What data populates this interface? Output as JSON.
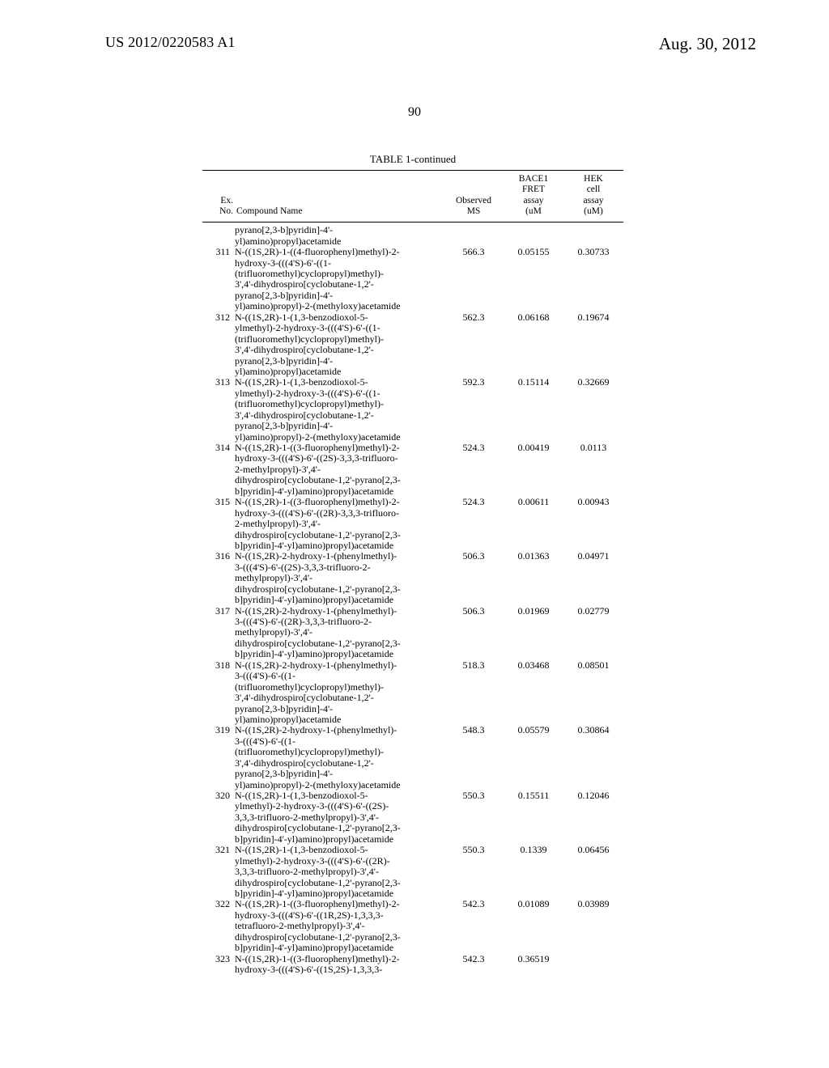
{
  "header": {
    "left": "US 2012/0220583 A1",
    "right": "Aug. 30, 2012",
    "page_number": "90"
  },
  "table": {
    "title": "TABLE 1-continued",
    "columns": {
      "exno": "Ex.\nNo.",
      "name": "Compound Name",
      "ms": "Observed\nMS",
      "fret": "BACE1\nFRET\nassay\n(uM",
      "hek": "HEK\ncell\nassay\n(uM)"
    },
    "prelude": [
      "pyrano[2,3-b]pyridin]-4'-",
      "yl)amino)propyl)acetamide"
    ],
    "rows": [
      {
        "ex": "311",
        "ms": "566.3",
        "fret": "0.05155",
        "hek": "0.30733",
        "name": [
          "N-((1S,2R)-1-((4-fluorophenyl)methyl)-2-",
          "hydroxy-3-(((4'S)-6'-((1-",
          "(trifluoromethyl)cyclopropyl)methyl)-",
          "3',4'-dihydrospiro[cyclobutane-1,2'-",
          "pyrano[2,3-b]pyridin]-4'-",
          "yl)amino)propyl)-2-(methyloxy)acetamide"
        ]
      },
      {
        "ex": "312",
        "ms": "562.3",
        "fret": "0.06168",
        "hek": "0.19674",
        "name": [
          "N-((1S,2R)-1-(1,3-benzodioxol-5-",
          "ylmethyl)-2-hydroxy-3-(((4'S)-6'-((1-",
          "(trifluoromethyl)cyclopropyl)methyl)-",
          "3',4'-dihydrospiro[cyclobutane-1,2'-",
          "pyrano[2,3-b]pyridin]-4'-",
          "yl)amino)propyl)acetamide"
        ]
      },
      {
        "ex": "313",
        "ms": "592.3",
        "fret": "0.15114",
        "hek": "0.32669",
        "name": [
          "N-((1S,2R)-1-(1,3-benzodioxol-5-",
          "ylmethyl)-2-hydroxy-3-(((4'S)-6'-((1-",
          "(trifluoromethyl)cyclopropyl)methyl)-",
          "3',4'-dihydrospiro[cyclobutane-1,2'-",
          "pyrano[2,3-b]pyridin]-4'-",
          "yl)amino)propyl)-2-(methyloxy)acetamide"
        ]
      },
      {
        "ex": "314",
        "ms": "524.3",
        "fret": "0.00419",
        "hek": "0.0113",
        "name": [
          "N-((1S,2R)-1-((3-fluorophenyl)methyl)-2-",
          "hydroxy-3-(((4'S)-6'-((2S)-3,3,3-trifluoro-",
          "2-methylpropyl)-3',4'-",
          "dihydrospiro[cyclobutane-1,2'-pyrano[2,3-",
          "b]pyridin]-4'-yl)amino)propyl)acetamide"
        ]
      },
      {
        "ex": "315",
        "ms": "524.3",
        "fret": "0.00611",
        "hek": "0.00943",
        "name": [
          "N-((1S,2R)-1-((3-fluorophenyl)methyl)-2-",
          "hydroxy-3-(((4'S)-6'-((2R)-3,3,3-trifluoro-",
          "2-methylpropyl)-3',4'-",
          "dihydrospiro[cyclobutane-1,2'-pyrano[2,3-",
          "b]pyridin]-4'-yl)amino)propyl)acetamide"
        ]
      },
      {
        "ex": "316",
        "ms": "506.3",
        "fret": "0.01363",
        "hek": "0.04971",
        "name": [
          "N-((1S,2R)-2-hydroxy-1-(phenylmethyl)-",
          "3-(((4'S)-6'-((2S)-3,3,3-trifluoro-2-",
          "methylpropyl)-3',4'-",
          "dihydrospiro[cyclobutane-1,2'-pyrano[2,3-",
          "b]pyridin]-4'-yl)amino)propyl)acetamide"
        ]
      },
      {
        "ex": "317",
        "ms": "506.3",
        "fret": "0.01969",
        "hek": "0.02779",
        "name": [
          "N-((1S,2R)-2-hydroxy-1-(phenylmethyl)-",
          "3-(((4'S)-6'-((2R)-3,3,3-trifluoro-2-",
          "methylpropyl)-3',4'-",
          "dihydrospiro[cyclobutane-1,2'-pyrano[2,3-",
          "b]pyridin]-4'-yl)amino)propyl)acetamide"
        ]
      },
      {
        "ex": "318",
        "ms": "518.3",
        "fret": "0.03468",
        "hek": "0.08501",
        "name": [
          "N-((1S,2R)-2-hydroxy-1-(phenylmethyl)-",
          "3-(((4'S)-6'-((1-",
          "(trifluoromethyl)cyclopropyl)methyl)-",
          "3',4'-dihydrospiro[cyclobutane-1,2'-",
          "pyrano[2,3-b]pyridin]-4'-",
          "yl)amino)propyl)acetamide"
        ]
      },
      {
        "ex": "319",
        "ms": "548.3",
        "fret": "0.05579",
        "hek": "0.30864",
        "name": [
          "N-((1S,2R)-2-hydroxy-1-(phenylmethyl)-",
          "3-(((4'S)-6'-((1-",
          "(trifluoromethyl)cyclopropyl)methyl)-",
          "3',4'-dihydrospiro[cyclobutane-1,2'-",
          "pyrano[2,3-b]pyridin]-4'-",
          "yl)amino)propyl)-2-(methyloxy)acetamide"
        ]
      },
      {
        "ex": "320",
        "ms": "550.3",
        "fret": "0.15511",
        "hek": "0.12046",
        "name": [
          "N-((1S,2R)-1-(1,3-benzodioxol-5-",
          "ylmethyl)-2-hydroxy-3-(((4'S)-6'-((2S)-",
          "3,3,3-trifluoro-2-methylpropyl)-3',4'-",
          "dihydrospiro[cyclobutane-1,2'-pyrano[2,3-",
          "b]pyridin]-4'-yl)amino)propyl)acetamide"
        ]
      },
      {
        "ex": "321",
        "ms": "550.3",
        "fret": "0.1339",
        "hek": "0.06456",
        "name": [
          "N-((1S,2R)-1-(1,3-benzodioxol-5-",
          "ylmethyl)-2-hydroxy-3-(((4'S)-6'-((2R)-",
          "3,3,3-trifluoro-2-methylpropyl)-3',4'-",
          "dihydrospiro[cyclobutane-1,2'-pyrano[2,3-",
          "b]pyridin]-4'-yl)amino)propyl)acetamide"
        ]
      },
      {
        "ex": "322",
        "ms": "542.3",
        "fret": "0.01089",
        "hek": "0.03989",
        "name": [
          "N-((1S,2R)-1-((3-fluorophenyl)methyl)-2-",
          "hydroxy-3-(((4'S)-6'-((1R,2S)-1,3,3,3-",
          "tetrafluoro-2-methylpropyl)-3',4'-",
          "dihydrospiro[cyclobutane-1,2'-pyrano[2,3-",
          "b]pyridin]-4'-yl)amino)propyl)acetamide"
        ]
      },
      {
        "ex": "323",
        "ms": "542.3",
        "fret": "0.36519",
        "hek": "",
        "name": [
          "N-((1S,2R)-1-((3-fluorophenyl)methyl)-2-",
          "hydroxy-3-(((4'S)-6'-((1S,2S)-1,3,3,3-"
        ]
      }
    ]
  }
}
